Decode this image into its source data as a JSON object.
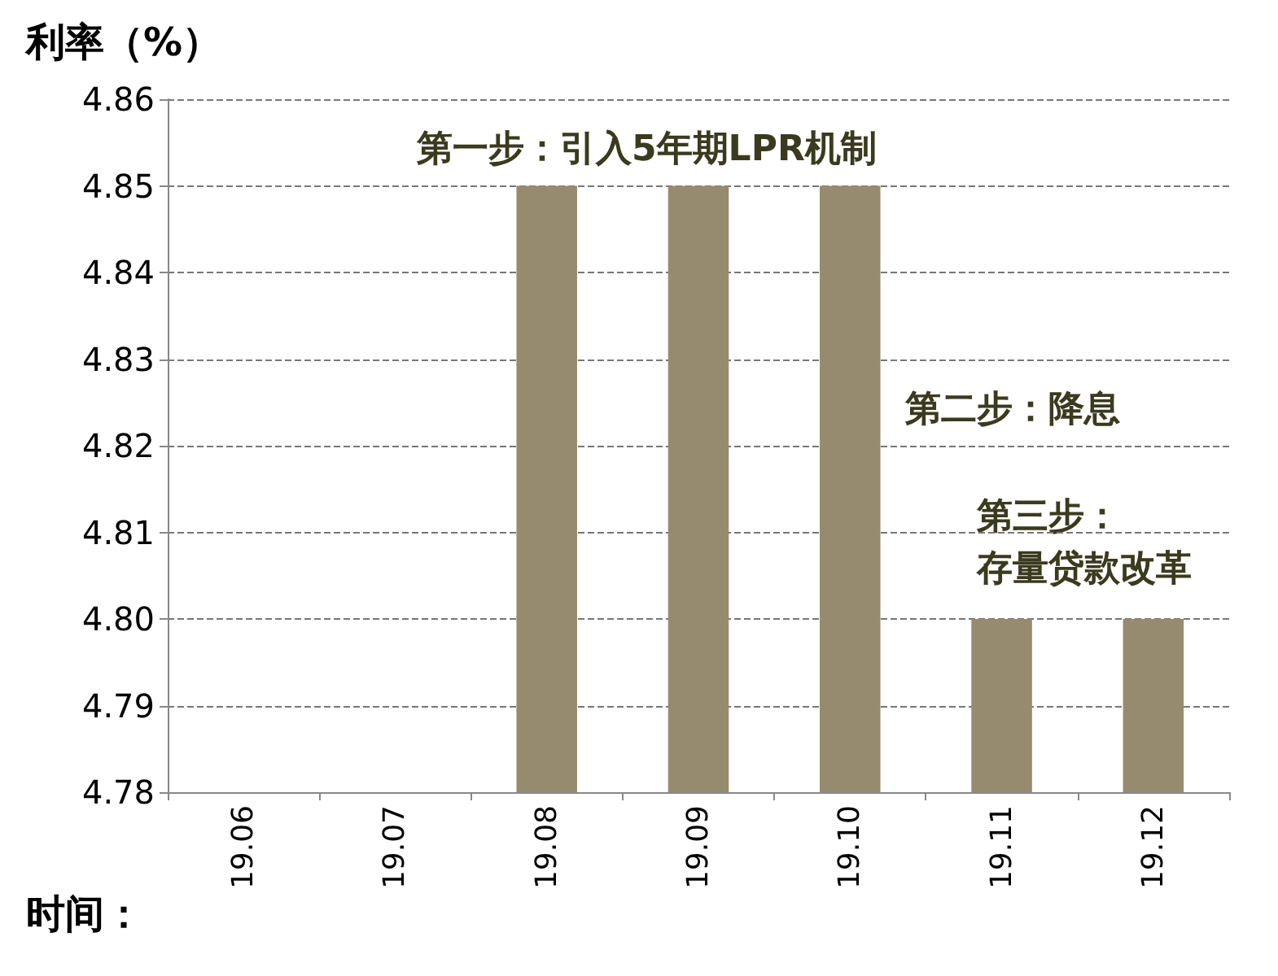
{
  "chart_data": {
    "type": "bar",
    "ylabel": "利率（%）",
    "xlabel": "时间：",
    "categories": [
      "19.06",
      "19.07",
      "19.08",
      "19.09",
      "19.10",
      "19.11",
      "19.12"
    ],
    "values": [
      null,
      null,
      4.85,
      4.85,
      4.85,
      4.8,
      4.8
    ],
    "color": "#968b6f",
    "ylim": [
      4.78,
      4.86
    ],
    "yticks": [
      4.78,
      4.79,
      {
        "value": 4.8,
        "label": "4.80"
      },
      4.81,
      4.82,
      4.83,
      4.84,
      4.85,
      4.86
    ],
    "grid": "y",
    "annotations": [
      "第一步：引入5年期LPR机制",
      "第二步：降息",
      "第三步：",
      "存量贷款改革"
    ]
  }
}
